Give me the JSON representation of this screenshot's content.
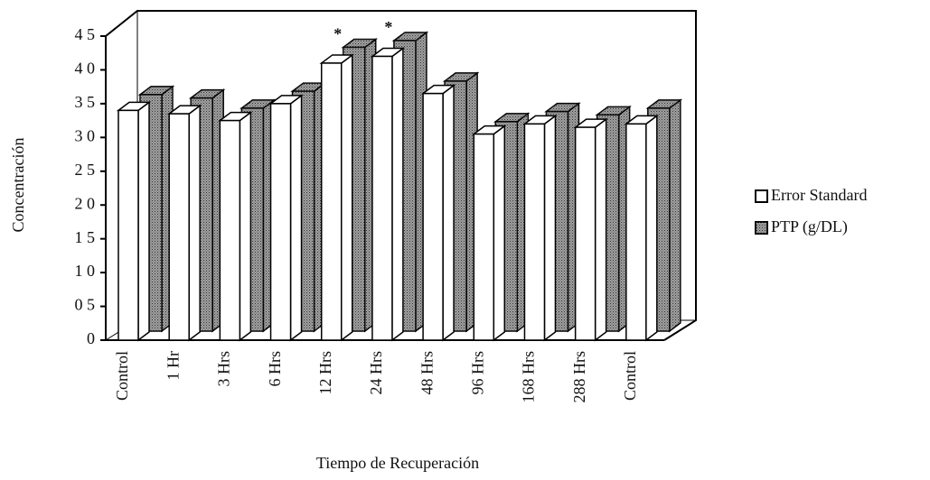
{
  "chart_data": {
    "type": "bar3d",
    "y_label": "Concentración",
    "x_label": "Tiempo de Recuperación",
    "categories": [
      "Control",
      "1 Hr",
      "3 Hrs",
      "6 Hrs",
      "12 Hrs",
      "24 Hrs",
      "48 Hrs",
      "96 Hrs",
      "168 Hrs",
      "288 Hrs",
      "Control"
    ],
    "series": [
      {
        "name": "Error Standard",
        "color": "#ffffff",
        "values": [
          3.4,
          3.35,
          3.25,
          3.5,
          4.1,
          4.2,
          3.65,
          3.05,
          3.2,
          3.15,
          3.2
        ]
      },
      {
        "name": "PTP (g/DL)",
        "color": "#a0a0a0",
        "values": [
          3.5,
          3.45,
          3.3,
          3.55,
          4.2,
          4.3,
          3.7,
          3.1,
          3.25,
          3.2,
          3.3
        ]
      }
    ],
    "annotations": [
      {
        "text": "*",
        "category": "12 Hrs"
      },
      {
        "text": "*",
        "category": "24 Hrs"
      }
    ],
    "ylim": [
      0,
      4.5
    ],
    "yticks": [
      0,
      {
        "value": 0.5,
        "label": "0 5"
      },
      {
        "value": 1,
        "label": "1 0"
      },
      {
        "value": 1.5,
        "label": "1 5"
      },
      {
        "value": 2,
        "label": "2 0"
      },
      {
        "value": 2.5,
        "label": "2 5"
      },
      {
        "value": 3,
        "label": "3 0"
      },
      {
        "value": 3.5,
        "label": "3 5"
      },
      {
        "value": 4,
        "label": "4 0"
      },
      {
        "value": 4.5,
        "label": "4 5"
      }
    ],
    "legend": "right"
  }
}
